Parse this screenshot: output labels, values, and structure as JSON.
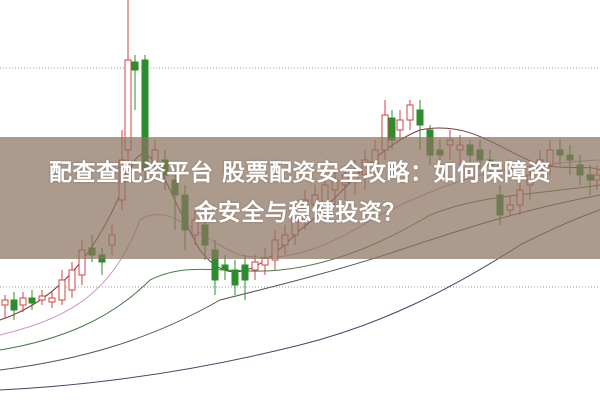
{
  "image": {
    "background_color": "#ffffff",
    "up_candle_color": "#d04040",
    "down_candle_color": "#2e8b2e",
    "overlay_color": "#8c735f"
  },
  "headline": {
    "line1": "配查查配资平台 股票配资安全攻略：如何保障资",
    "line2": "金安全与稳健投资？"
  }
}
